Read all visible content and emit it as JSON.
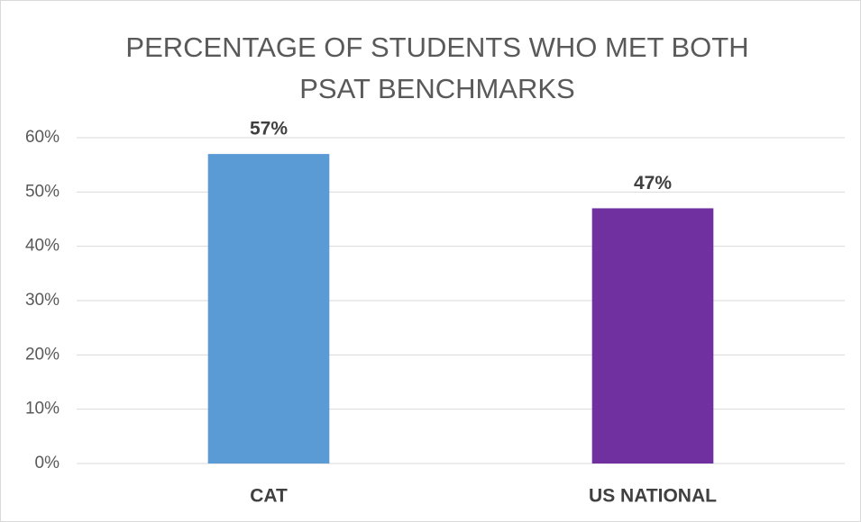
{
  "chart_data": {
    "type": "bar",
    "title": "PERCENTAGE OF STUDENTS WHO MET BOTH PSAT BENCHMARKS",
    "categories": [
      "CAT",
      "US NATIONAL"
    ],
    "values": [
      57,
      47
    ],
    "value_labels": [
      "57%",
      "47%"
    ],
    "colors": [
      "#5b9bd5",
      "#7030a0"
    ],
    "ylim": [
      0,
      60
    ],
    "yticks": [
      {
        "value": 0,
        "label": "0%"
      },
      {
        "value": 10,
        "label": "10%"
      },
      {
        "value": 20,
        "label": "20%"
      },
      {
        "value": 30,
        "label": "30%"
      },
      {
        "value": 40,
        "label": "40%"
      },
      {
        "value": 50,
        "label": "50%"
      },
      {
        "value": 60,
        "label": "60%"
      }
    ],
    "grid": true
  }
}
